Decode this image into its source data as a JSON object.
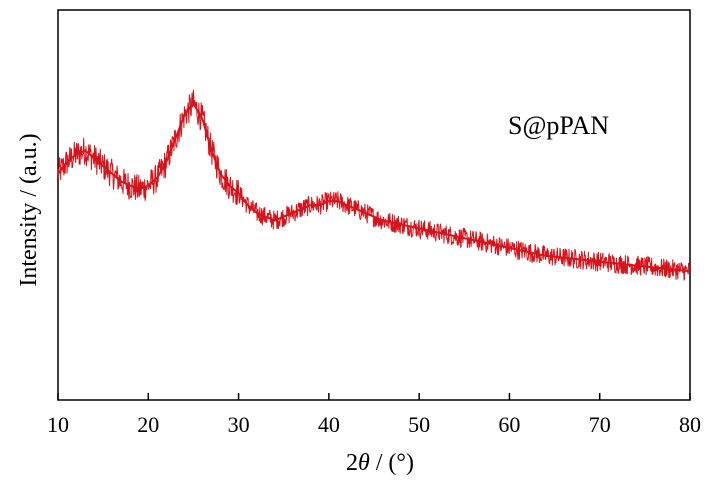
{
  "chart_data": {
    "type": "line",
    "xlabel_prefix": "2",
    "xlabel_theta": "θ",
    "xlabel_suffix": " / (°)",
    "ylabel": "Intensity / (a.u.)",
    "xlim": [
      10,
      80
    ],
    "ylim": [
      0,
      100
    ],
    "y_ticks_shown": false,
    "x_ticks": [
      "10",
      "20",
      "30",
      "40",
      "50",
      "60",
      "70",
      "80"
    ],
    "grid": false,
    "legend_position": "top-right",
    "series": [
      {
        "name": "S@pPAN",
        "color": "#d4141c",
        "x": [
          10,
          11,
          12,
          13,
          14,
          15,
          16,
          17,
          18,
          19,
          20,
          21,
          22,
          23,
          24,
          25,
          26,
          27,
          28,
          29,
          30,
          31,
          32,
          33,
          34,
          35,
          36,
          37,
          38,
          39,
          40,
          41,
          42,
          43,
          44,
          45,
          46,
          48,
          50,
          52,
          54,
          56,
          58,
          60,
          62,
          64,
          66,
          68,
          70,
          72,
          74,
          76,
          78,
          80
        ],
        "y": [
          58,
          61,
          63,
          64,
          62,
          60,
          58,
          56,
          55,
          54,
          55,
          57,
          61,
          67,
          73,
          76,
          72,
          64,
          58,
          55,
          53,
          50,
          48,
          47,
          46,
          47,
          48,
          49,
          50,
          50,
          51,
          51,
          50,
          49,
          48,
          47,
          46,
          45,
          44,
          43,
          42,
          41,
          40,
          39,
          38,
          37,
          36.5,
          36,
          35.5,
          35,
          34.5,
          34,
          33.5,
          33
        ]
      }
    ]
  }
}
